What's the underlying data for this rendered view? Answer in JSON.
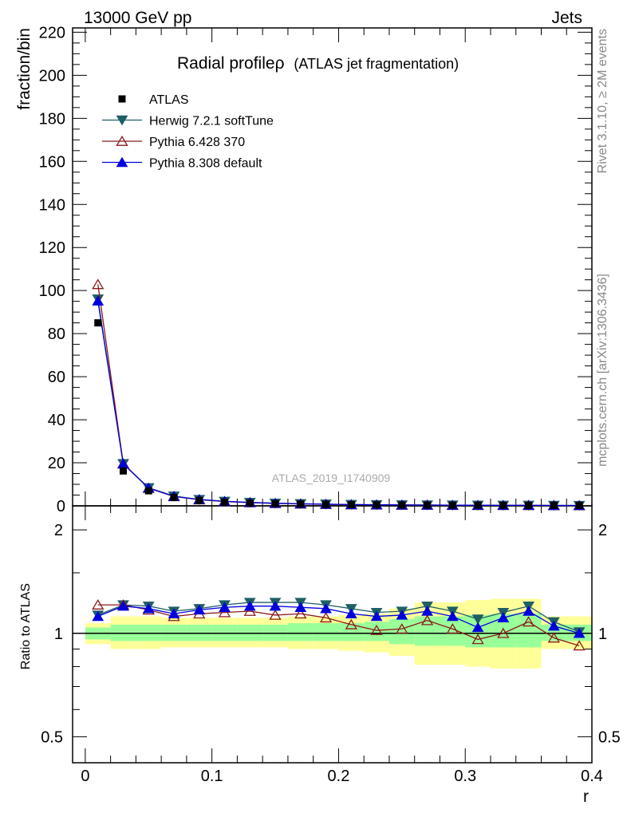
{
  "header": {
    "left": "13000 GeV pp",
    "right": "Jets"
  },
  "side": {
    "rivet": "Rivet 3.1.10, ≥ 2M events",
    "mcplots": "mcplots.cern.ch [arXiv:1306.3436]"
  },
  "watermark": "ATLAS_2019_I1740909",
  "chart_data": {
    "type": "line",
    "title": "Radial profileρ",
    "title_suffix": "(ATLAS jet fragmentation)",
    "xlabel": "r",
    "ylabel": "fraction/bin",
    "ratio_ylabel": "Ratio to ATLAS",
    "xlim": [
      -0.01,
      0.4
    ],
    "ylim": [
      0,
      222
    ],
    "ratio_ylim": [
      0.42,
      2.35
    ],
    "ratio_scale": "log",
    "x_ticks": [
      0,
      0.1,
      0.2,
      0.3,
      0.4
    ],
    "x_tick_labels": [
      "0",
      "0.1",
      "0.2",
      "0.3",
      "0.4"
    ],
    "y_ticks": [
      0,
      20,
      40,
      60,
      80,
      100,
      120,
      140,
      160,
      180,
      200,
      220
    ],
    "y_tick_labels": [
      "0",
      "20",
      "40",
      "60",
      "80",
      "100",
      "120",
      "140",
      "160",
      "180",
      "200",
      "220"
    ],
    "ratio_ticks": [
      0.5,
      1,
      2
    ],
    "ratio_tick_labels": [
      "0.5",
      "1",
      "2"
    ],
    "legend_position": "top-left",
    "x": [
      0.01,
      0.03,
      0.05,
      0.07,
      0.09,
      0.11,
      0.13,
      0.15,
      0.17,
      0.19,
      0.21,
      0.23,
      0.25,
      0.27,
      0.29,
      0.31,
      0.33,
      0.35,
      0.37,
      0.39
    ],
    "data": {
      "name": "ATLAS",
      "color": "#000000",
      "values": [
        85.0,
        16.2,
        7.0,
        3.9,
        2.5,
        1.75,
        1.3,
        1.0,
        0.8,
        0.65,
        0.52,
        0.44,
        0.37,
        0.32,
        0.28,
        0.25,
        0.22,
        0.2,
        0.18,
        0.16
      ],
      "band_green": [
        [
          0.96,
          1.04
        ],
        [
          0.95,
          1.06
        ],
        [
          0.95,
          1.06
        ],
        [
          0.95,
          1.06
        ],
        [
          0.95,
          1.06
        ],
        [
          0.95,
          1.06
        ],
        [
          0.95,
          1.06
        ],
        [
          0.95,
          1.06
        ],
        [
          0.95,
          1.07
        ],
        [
          0.95,
          1.07
        ],
        [
          0.95,
          1.07
        ],
        [
          0.95,
          1.08
        ],
        [
          0.93,
          1.1
        ],
        [
          0.92,
          1.12
        ],
        [
          0.92,
          1.12
        ],
        [
          0.91,
          1.13
        ],
        [
          0.91,
          1.14
        ],
        [
          0.91,
          1.14
        ],
        [
          0.95,
          1.06
        ],
        [
          0.95,
          1.06
        ]
      ],
      "band_yellow": [
        [
          0.93,
          1.07
        ],
        [
          0.9,
          1.12
        ],
        [
          0.9,
          1.12
        ],
        [
          0.91,
          1.11
        ],
        [
          0.91,
          1.11
        ],
        [
          0.91,
          1.11
        ],
        [
          0.91,
          1.11
        ],
        [
          0.91,
          1.11
        ],
        [
          0.9,
          1.12
        ],
        [
          0.9,
          1.12
        ],
        [
          0.89,
          1.13
        ],
        [
          0.88,
          1.14
        ],
        [
          0.86,
          1.18
        ],
        [
          0.81,
          1.23
        ],
        [
          0.81,
          1.23
        ],
        [
          0.8,
          1.25
        ],
        [
          0.79,
          1.26
        ],
        [
          0.79,
          1.26
        ],
        [
          0.9,
          1.12
        ],
        [
          0.9,
          1.12
        ]
      ]
    },
    "series": [
      {
        "name": "Herwig 7.2.1 softTune",
        "color": "#1f5f66",
        "marker": "triangle-down",
        "ratio": [
          1.13,
          1.21,
          1.2,
          1.16,
          1.18,
          1.21,
          1.23,
          1.23,
          1.23,
          1.21,
          1.18,
          1.15,
          1.16,
          1.2,
          1.16,
          1.1,
          1.15,
          1.2,
          1.08,
          1.01
        ]
      },
      {
        "name": "Pythia 6.428 370",
        "color": "#8b1a1a",
        "marker": "triangle-up-open",
        "ratio": [
          1.21,
          1.21,
          1.17,
          1.12,
          1.14,
          1.15,
          1.16,
          1.13,
          1.14,
          1.11,
          1.06,
          1.02,
          1.03,
          1.09,
          1.03,
          0.96,
          1.0,
          1.08,
          0.97,
          0.92
        ]
      },
      {
        "name": "Pythia 8.308 default",
        "color": "#0000dd",
        "marker": "triangle-up",
        "ratio": [
          1.12,
          1.2,
          1.18,
          1.14,
          1.17,
          1.19,
          1.2,
          1.2,
          1.19,
          1.18,
          1.14,
          1.12,
          1.13,
          1.16,
          1.12,
          1.04,
          1.11,
          1.16,
          1.05,
          1.0
        ]
      }
    ]
  }
}
